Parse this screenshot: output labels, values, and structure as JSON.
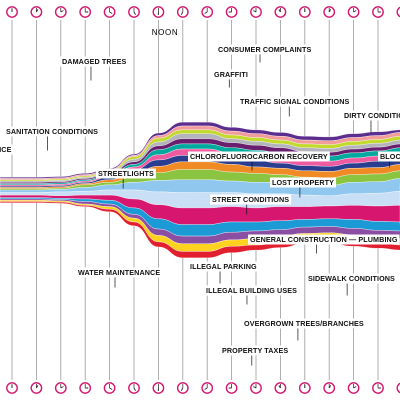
{
  "chart_data": {
    "type": "area",
    "subtype": "streamgraph",
    "noon_label": "NOON",
    "clock_count": 24,
    "x": [
      0,
      1,
      2,
      3,
      4,
      5,
      6,
      7,
      8,
      9,
      10,
      11,
      12,
      13,
      14,
      15,
      16,
      17,
      18,
      19,
      20,
      21,
      22,
      23
    ],
    "series": [
      {
        "name": "STREETLIGHTS",
        "color": "#c9dff5",
        "values": [
          2,
          2,
          3,
          3,
          4,
          7,
          10,
          12,
          12,
          11,
          11,
          10,
          9,
          8,
          9,
          10,
          11,
          12,
          11,
          10,
          8,
          7,
          6,
          5
        ]
      },
      {
        "name": "GENERAL CONSTRUCTION — PLUMBING",
        "color": "#d6166f",
        "values": [
          2,
          2,
          2,
          3,
          4,
          7,
          11,
          13,
          13,
          12,
          11,
          11,
          10,
          10,
          11,
          12,
          13,
          13,
          12,
          11,
          11,
          10,
          10,
          10
        ]
      },
      {
        "name": "CHLOROFLUOROCARBON RECOVERY",
        "color": "#8fc7ef",
        "values": [
          2,
          2,
          2,
          3,
          4,
          6,
          9,
          10,
          10,
          9,
          9,
          9,
          8,
          8,
          9,
          9,
          10,
          10,
          9,
          8,
          6,
          5,
          4,
          4
        ]
      },
      {
        "name": "ILLEGAL PARKING",
        "color": "#1b9ad6",
        "values": [
          1,
          1,
          1,
          2,
          3,
          5,
          8,
          9,
          9,
          8,
          7,
          7,
          6,
          6,
          7,
          7,
          7,
          6,
          6,
          6,
          5,
          5,
          5,
          5
        ]
      },
      {
        "name": "STREET CONDITIONS",
        "color": "#8ac440",
        "values": [
          1,
          1,
          1,
          2,
          2,
          4,
          6,
          8,
          8,
          7,
          7,
          6,
          6,
          6,
          6,
          6,
          6,
          6,
          6,
          5,
          4,
          3,
          3,
          3
        ]
      },
      {
        "name": "ILLEGAL BUILDING USES",
        "color": "#8a4fa3",
        "values": [
          1,
          1,
          1,
          2,
          2,
          3,
          5,
          6,
          6,
          6,
          6,
          5,
          5,
          5,
          5,
          5,
          6,
          6,
          5,
          5,
          4,
          3,
          3,
          3
        ]
      },
      {
        "name": "LOST PROPERTY",
        "color": "#f08a24",
        "values": [
          1,
          1,
          1,
          1,
          2,
          3,
          5,
          6,
          6,
          6,
          5,
          5,
          5,
          5,
          5,
          5,
          5,
          5,
          5,
          4,
          4,
          3,
          3,
          3
        ]
      },
      {
        "name": "SIDEWALK CONDITIONS",
        "color": "#ffd21f",
        "values": [
          1,
          1,
          1,
          1,
          2,
          3,
          5,
          6,
          6,
          5,
          5,
          5,
          4,
          4,
          5,
          5,
          5,
          5,
          4,
          4,
          3,
          3,
          3,
          3
        ]
      },
      {
        "name": "WATER MAINTENANCE",
        "color": "#2a3d8f",
        "values": [
          1,
          1,
          1,
          1,
          2,
          3,
          5,
          5,
          5,
          5,
          5,
          4,
          4,
          4,
          4,
          5,
          5,
          5,
          4,
          4,
          3,
          2,
          2,
          2
        ]
      },
      {
        "name": "OVERGROWN TREES/BRANCHES",
        "color": "#e11f2f",
        "values": [
          1,
          1,
          1,
          1,
          2,
          3,
          4,
          5,
          5,
          5,
          4,
          4,
          4,
          4,
          4,
          4,
          4,
          4,
          4,
          4,
          3,
          2,
          2,
          2
        ]
      },
      {
        "name": "SANITATION CONDITIONS",
        "color": "#ef5ba1",
        "values": [
          1,
          1,
          1,
          1,
          1,
          2,
          4,
          5,
          5,
          4,
          4,
          4,
          4,
          4,
          4,
          4,
          4,
          4,
          4,
          3,
          3,
          2,
          2,
          2
        ]
      },
      {
        "name": "PROPERTY TAXES",
        "color": "#00a99d",
        "values": [
          1,
          1,
          1,
          1,
          1,
          2,
          4,
          4,
          4,
          4,
          4,
          4,
          4,
          4,
          4,
          4,
          4,
          4,
          3,
          3,
          2,
          2,
          2,
          2
        ]
      },
      {
        "name": "DIRTY CONDITIONS",
        "color": "#6a1f6e",
        "values": [
          1,
          1,
          1,
          1,
          1,
          2,
          3,
          4,
          4,
          4,
          4,
          4,
          3,
          3,
          3,
          3,
          3,
          3,
          3,
          3,
          2,
          2,
          2,
          2
        ]
      },
      {
        "name": "TRAFFIC SIGNAL CONDITIONS",
        "color": "#b4b4bc",
        "values": [
          1,
          1,
          1,
          1,
          1,
          2,
          3,
          4,
          4,
          3,
          3,
          3,
          3,
          3,
          3,
          3,
          3,
          3,
          3,
          3,
          2,
          2,
          2,
          2
        ]
      },
      {
        "name": "GRAFFITI",
        "color": "#c2d92e",
        "values": [
          1,
          1,
          1,
          1,
          1,
          2,
          3,
          3,
          3,
          3,
          3,
          3,
          3,
          3,
          3,
          3,
          3,
          3,
          3,
          2,
          2,
          2,
          2,
          2
        ]
      },
      {
        "name": "DAMAGED TREES",
        "color": "#f39c9c",
        "values": [
          1,
          1,
          1,
          1,
          1,
          1,
          2,
          3,
          3,
          3,
          3,
          3,
          3,
          3,
          3,
          3,
          3,
          3,
          2,
          2,
          2,
          2,
          2,
          2
        ]
      },
      {
        "name": "CONSUMER COMPLAINTS",
        "color": "#5b2d8e",
        "values": [
          1,
          1,
          1,
          1,
          1,
          1,
          2,
          3,
          3,
          3,
          3,
          3,
          3,
          3,
          3,
          3,
          2,
          2,
          2,
          2,
          2,
          2,
          2,
          2
        ]
      }
    ],
    "annotations": [
      {
        "text": "DAMAGED TREES",
        "series": "DAMAGED TREES"
      },
      {
        "text": "CONSUMER COMPLAINTS",
        "series": "CONSUMER COMPLAINTS"
      },
      {
        "text": "GRAFFITI",
        "series": "GRAFFITI"
      },
      {
        "text": "TRAFFIC SIGNAL CONDITIONS",
        "series": "TRAFFIC SIGNAL CONDITIONS"
      },
      {
        "text": "DIRTY CONDITIO",
        "series": "DIRTY CONDITIONS"
      },
      {
        "text": "SANITATION CONDITIONS",
        "series": "SANITATION CONDITIONS"
      },
      {
        "text": "NCE",
        "series": ""
      },
      {
        "text": "CHLOROFLUOROCARBON RECOVERY",
        "series": "CHLOROFLUOROCARBON RECOVERY"
      },
      {
        "text": "BLOC",
        "series": ""
      },
      {
        "text": "STREETLIGHTS",
        "series": "STREETLIGHTS"
      },
      {
        "text": "LOST PROPERTY",
        "series": "LOST PROPERTY"
      },
      {
        "text": "STREET CONDITIONS",
        "series": "STREET CONDITIONS"
      },
      {
        "text": "GENERAL CONSTRUCTION — PLUMBING",
        "series": "GENERAL CONSTRUCTION — PLUMBING"
      },
      {
        "text": "WATER MAINTENANCE",
        "series": "WATER MAINTENANCE"
      },
      {
        "text": "ILLEGAL PARKING",
        "series": "ILLEGAL PARKING"
      },
      {
        "text": "SIDEWALK CONDITIONS",
        "series": "SIDEWALK CONDITIONS"
      },
      {
        "text": "ILLEGAL BUILDING USES",
        "series": "ILLEGAL BUILDING USES"
      },
      {
        "text": "OVERGROWN TREES/BRANCHES",
        "series": "OVERGROWN TREES/BRANCHES"
      },
      {
        "text": "PROPERTY TAXES",
        "series": "PROPERTY TAXES"
      }
    ],
    "colors": {
      "clock_face": "#d6166f",
      "noon": "#d6166f",
      "gridline": "#9a9a9a",
      "label_bg": "#ffffff",
      "label_text": "#111111"
    },
    "grid": true,
    "legend": "none"
  }
}
